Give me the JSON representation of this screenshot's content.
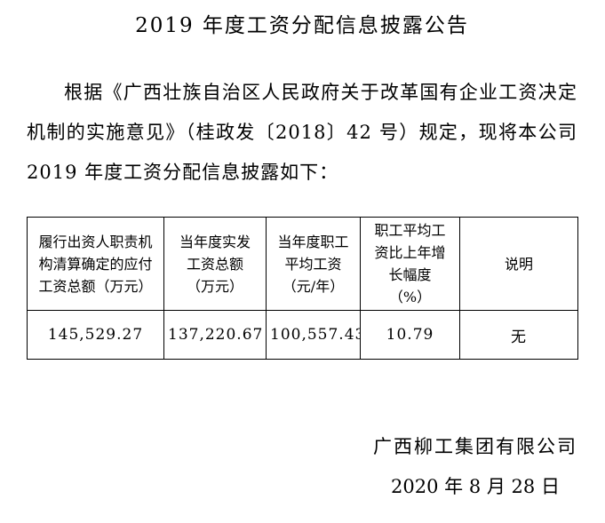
{
  "page": {
    "background_color": "#ffffff",
    "text_color": "#000000",
    "table_border_color": "#000000"
  },
  "title": "2019 年度工资分配信息披露公告",
  "body": {
    "paragraph": "根据《广西壮族自治区人民政府关于改革国有企业工资决定机制的实施意见》（桂政发〔2018〕42 号）规定，现将本公司 2019 年度工资分配信息披露如下："
  },
  "table": {
    "headers": [
      "履行出资人职责机构清算确定的应付工资总额（万元）",
      "当年度实发工资总额（万元）",
      "当年度职工平均工资（元/年）",
      "职工平均工资比上年增长幅度（%）",
      "说明"
    ],
    "rows": [
      [
        "145,529.27",
        "137,220.67",
        "100,557.43",
        "10.79",
        "无"
      ]
    ]
  },
  "signature": {
    "company": "广西柳工集团有限公司",
    "date": "2020 年 8 月 28 日"
  }
}
